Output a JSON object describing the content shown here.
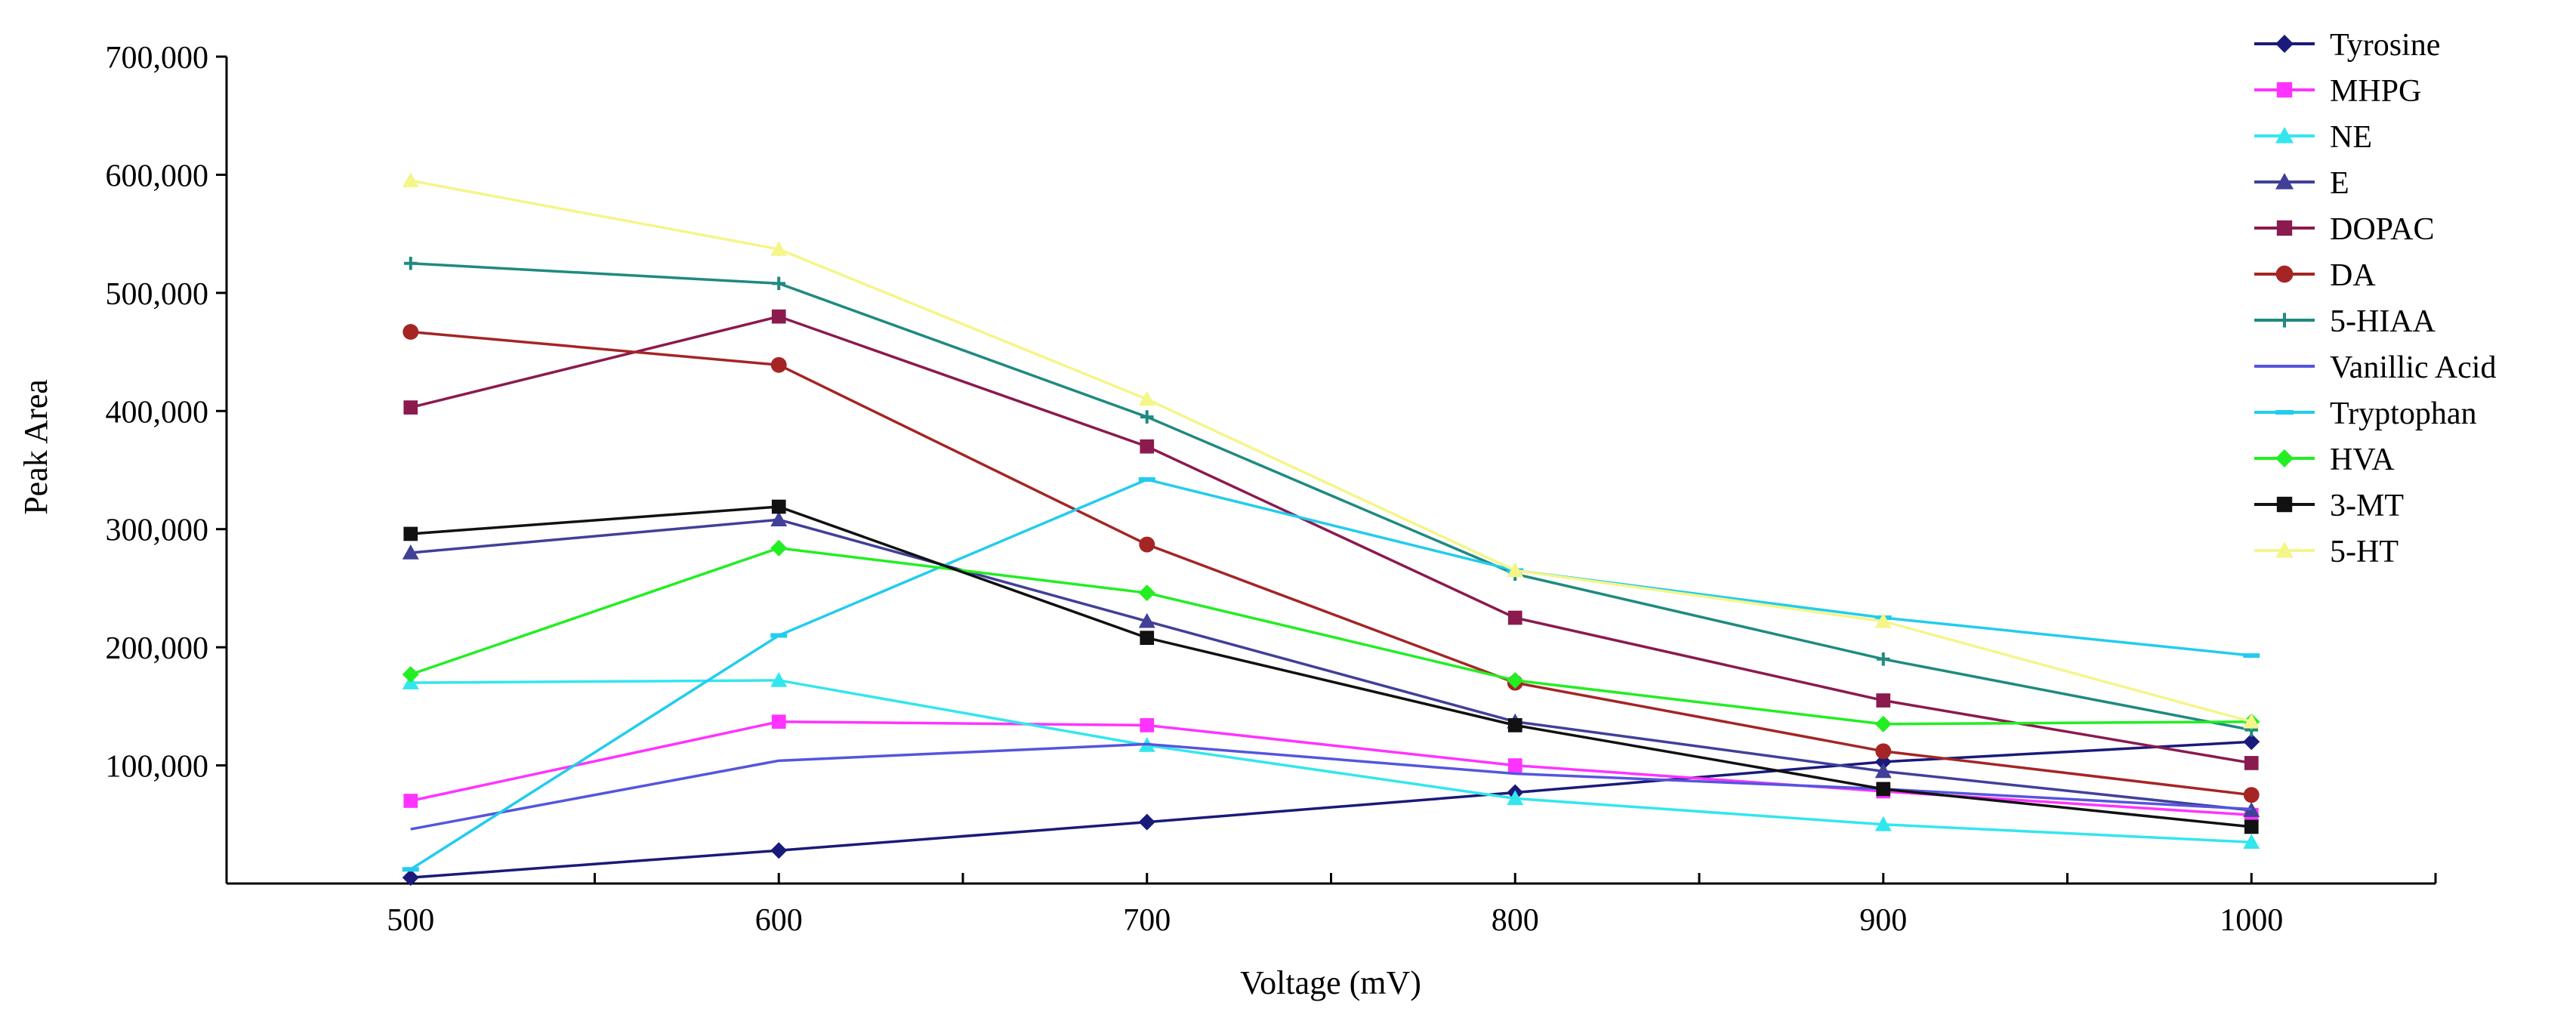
{
  "chart_data": {
    "type": "line",
    "title": "",
    "xlabel": "Voltage (mV)",
    "ylabel": "Peak Area",
    "x": [
      500,
      600,
      700,
      800,
      900,
      1000
    ],
    "x_tick_labels": [
      "500",
      "600",
      "700",
      "800",
      "900",
      "1000"
    ],
    "xlim": [
      450,
      1050
    ],
    "ylim": [
      0,
      700000
    ],
    "y_ticks": [
      100000,
      200000,
      300000,
      400000,
      500000,
      600000,
      700000
    ],
    "y_tick_labels": [
      "100,000",
      "200,000",
      "300,000",
      "400,000",
      "500,000",
      "600,000",
      "700,000"
    ],
    "grid": false,
    "legend_position": "right",
    "series": [
      {
        "name": "Tyrosine",
        "color": "#1a1a7a",
        "marker": "diamond",
        "values": [
          5000,
          28000,
          52000,
          77000,
          103000,
          120000
        ]
      },
      {
        "name": "MHPG",
        "color": "#ff33ff",
        "marker": "square",
        "values": [
          70000,
          137000,
          134000,
          100000,
          78000,
          58000
        ]
      },
      {
        "name": "NE",
        "color": "#33e6ee",
        "marker": "triangle",
        "values": [
          170000,
          172000,
          117000,
          72000,
          50000,
          35000
        ]
      },
      {
        "name": "E",
        "color": "#404099",
        "marker": "triangle",
        "values": [
          280000,
          308000,
          222000,
          137000,
          95000,
          62000
        ]
      },
      {
        "name": "DOPAC",
        "color": "#8b1a4f",
        "marker": "square",
        "values": [
          403000,
          480000,
          370000,
          225000,
          155000,
          102000
        ]
      },
      {
        "name": "DA",
        "color": "#a52525",
        "marker": "circle",
        "values": [
          467000,
          439000,
          287000,
          170000,
          112000,
          75000
        ]
      },
      {
        "name": "5-HIAA",
        "color": "#1f8a80",
        "marker": "plus",
        "values": [
          525000,
          508000,
          395000,
          262000,
          190000,
          130000
        ]
      },
      {
        "name": "Vanillic Acid",
        "color": "#5555dd",
        "marker": "none",
        "values": [
          46000,
          104000,
          118000,
          93000,
          80000,
          63000
        ]
      },
      {
        "name": "Tryptophan",
        "color": "#22ccee",
        "marker": "dash",
        "values": [
          12000,
          210000,
          342000,
          265000,
          225000,
          193000
        ]
      },
      {
        "name": "HVA",
        "color": "#22ee22",
        "marker": "diamond",
        "values": [
          177000,
          284000,
          246000,
          172000,
          135000,
          137000
        ]
      },
      {
        "name": "3-MT",
        "color": "#111111",
        "marker": "square",
        "values": [
          296000,
          319000,
          208000,
          134000,
          80000,
          48000
        ]
      },
      {
        "name": "5-HT",
        "color": "#f5f58a",
        "marker": "triangle",
        "values": [
          595000,
          537000,
          410000,
          265000,
          222000,
          137000
        ]
      }
    ]
  }
}
